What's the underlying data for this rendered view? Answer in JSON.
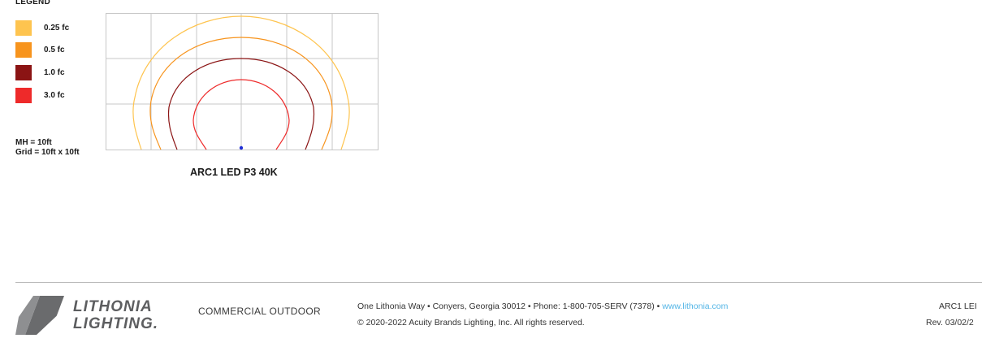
{
  "legend": {
    "title": "LEGEND",
    "items": [
      {
        "label": "0.25 fc",
        "color": "#fec44f"
      },
      {
        "label": "0.5 fc",
        "color": "#f7941d"
      },
      {
        "label": "1.0 fc",
        "color": "#8b1414"
      },
      {
        "label": "3.0 fc",
        "color": "#ee2a2a"
      }
    ]
  },
  "notes": {
    "mounting_height": "MH = 10ft",
    "grid": "Grid = 10ft x 10ft"
  },
  "chart_data": {
    "type": "isofootcandle-plot",
    "grid_cells": [
      6,
      3
    ],
    "contours": [
      {
        "value": "0.25 fc",
        "color": "#fec44f"
      },
      {
        "value": "0.5 fc",
        "color": "#f7941d"
      },
      {
        "value": "1.0 fc",
        "color": "#8b1414"
      },
      {
        "value": "3.0 fc",
        "color": "#ee2a2a"
      }
    ],
    "luminaire_marker_color": "#1f2fd6",
    "caption": "ARC1 LED P3 40K"
  },
  "footer": {
    "logo_line1": "LITHONIA",
    "logo_line2": "LIGHTING.",
    "segment": "COMMERCIAL OUTDOOR",
    "address": "One Lithonia Way • Conyers, Georgia 30012 • Phone: 1-800-705-SERV (7378) •",
    "website": "www.lithonia.com",
    "copyright": "© 2020-2022 Acuity Brands Lighting, Inc.  All rights reserved.",
    "doc_name": "ARC1 LEI",
    "revision": "Rev. 03/02/2"
  }
}
